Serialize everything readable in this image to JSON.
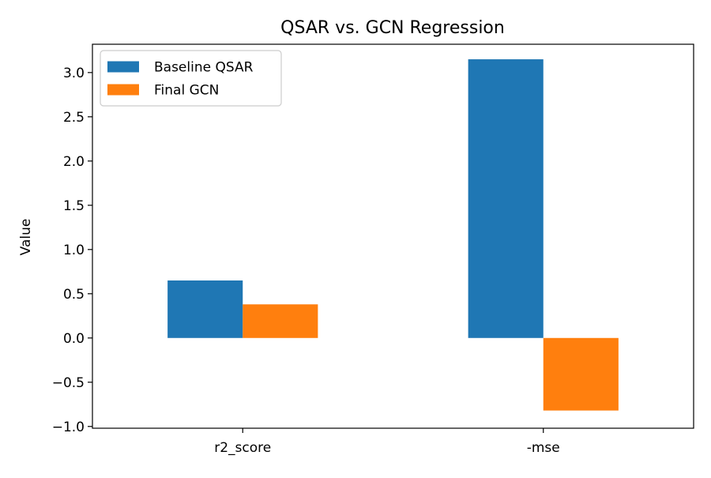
{
  "chart_data": {
    "type": "bar",
    "title": "QSAR vs. GCN Regression",
    "xlabel": "",
    "ylabel": "Value",
    "categories": [
      "r2_score",
      "-mse"
    ],
    "series": [
      {
        "name": "Baseline QSAR",
        "color": "#1f77b4",
        "values": [
          0.65,
          3.15
        ]
      },
      {
        "name": "Final GCN",
        "color": "#ff7f0e",
        "values": [
          0.38,
          -0.82
        ]
      }
    ],
    "ylim": [
      -1.02,
      3.32
    ],
    "yticks": [
      -1.0,
      -0.5,
      0.0,
      0.5,
      1.0,
      1.5,
      2.0,
      2.5,
      3.0
    ],
    "ytick_labels": [
      "−1.0",
      "−0.5",
      "0.0",
      "0.5",
      "1.0",
      "1.5",
      "2.0",
      "2.5",
      "3.0"
    ],
    "legend_position": "top-left",
    "grid": false
  }
}
